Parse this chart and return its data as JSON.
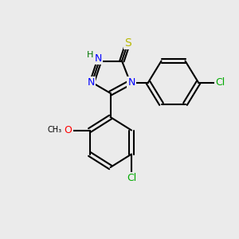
{
  "bg_color": "#ebebeb",
  "bond_color": "#000000",
  "bond_width": 1.5,
  "atom_colors": {
    "N": "#0000ff",
    "S": "#b8b800",
    "O": "#ff0000",
    "Cl": "#00aa00",
    "H": "#007700",
    "C": "#000000"
  },
  "font_size": 9,
  "font_size_small": 8
}
